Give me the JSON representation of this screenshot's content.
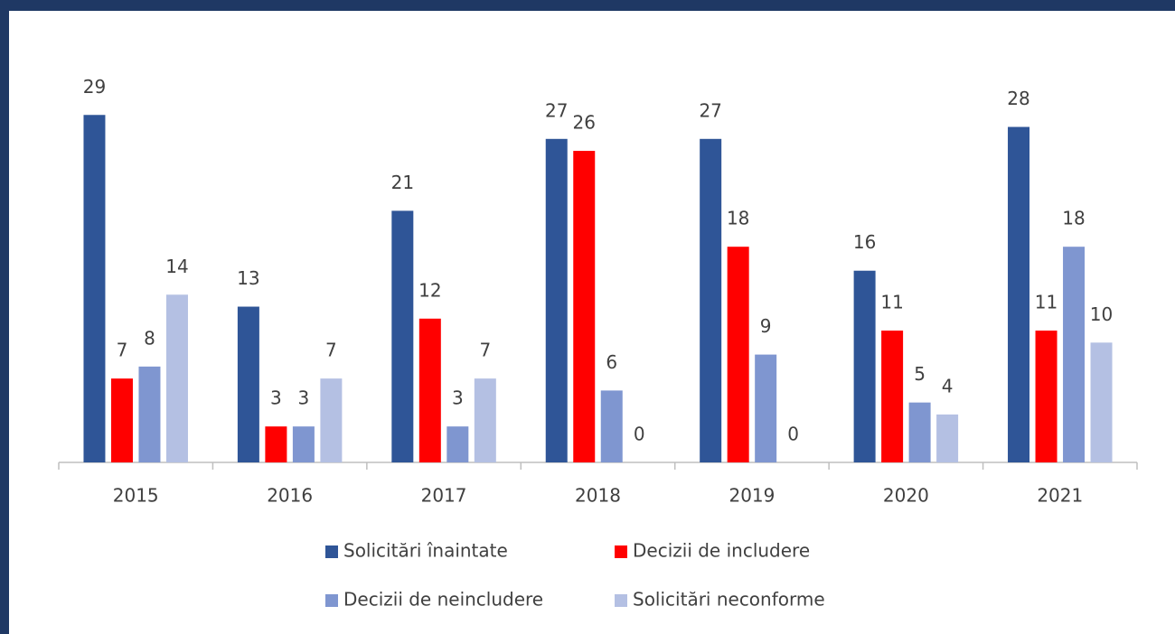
{
  "chart_data": {
    "type": "bar",
    "categories": [
      "2015",
      "2016",
      "2017",
      "2018",
      "2019",
      "2020",
      "2021"
    ],
    "series": [
      {
        "name": "Solicitări înaintate",
        "color": "#2f5597",
        "values": [
          29,
          13,
          21,
          27,
          27,
          16,
          28
        ]
      },
      {
        "name": "Decizii de includere",
        "color": "#ff0000",
        "values": [
          7,
          3,
          12,
          26,
          18,
          11,
          11
        ]
      },
      {
        "name": "Decizii de neincludere",
        "color": "#7f96d0",
        "values": [
          8,
          3,
          3,
          6,
          9,
          5,
          18
        ]
      },
      {
        "name": "Solicitări neconforme",
        "color": "#b4c0e3",
        "values": [
          14,
          7,
          7,
          0,
          0,
          4,
          10
        ]
      }
    ],
    "ylim": [
      0,
      30
    ],
    "legend": "bottom"
  }
}
